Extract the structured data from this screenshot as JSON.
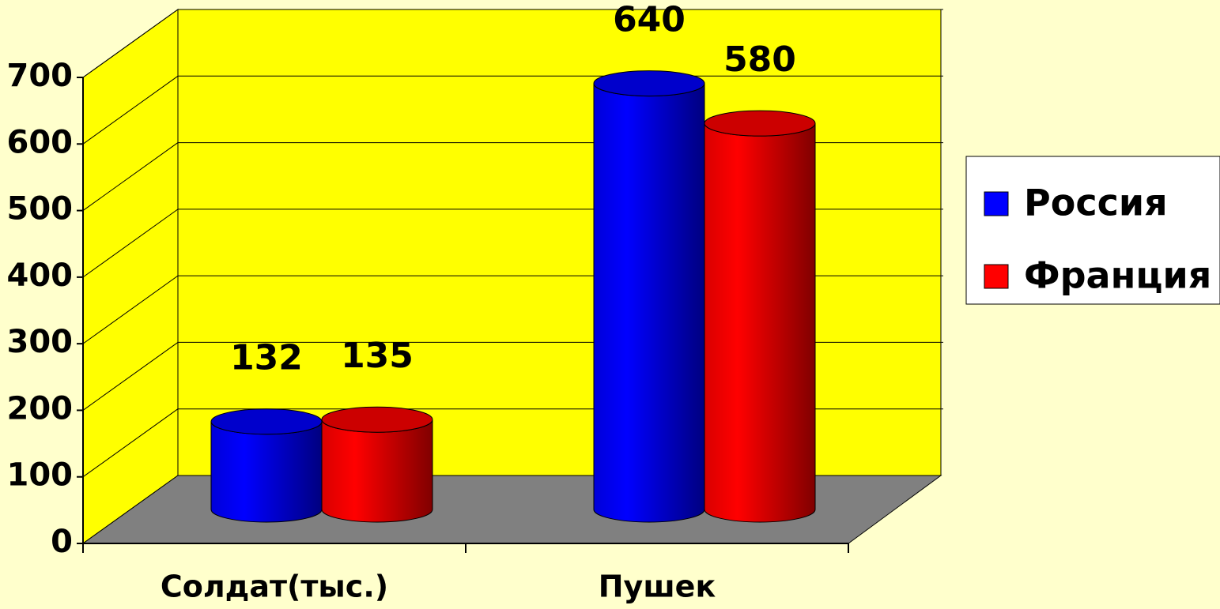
{
  "chart_data": {
    "type": "bar3d",
    "categories": [
      "Солдат(тыс.)",
      "Пушек"
    ],
    "series": [
      {
        "name": "Россия",
        "color": "#0000ff",
        "values": [
          132,
          640
        ]
      },
      {
        "name": "Франция",
        "color": "#ff0000",
        "values": [
          135,
          580
        ]
      }
    ],
    "ylim": [
      0,
      700
    ],
    "yticks": [
      0,
      100,
      200,
      300,
      400,
      500,
      600,
      700
    ],
    "grid": true,
    "legend": "right"
  }
}
